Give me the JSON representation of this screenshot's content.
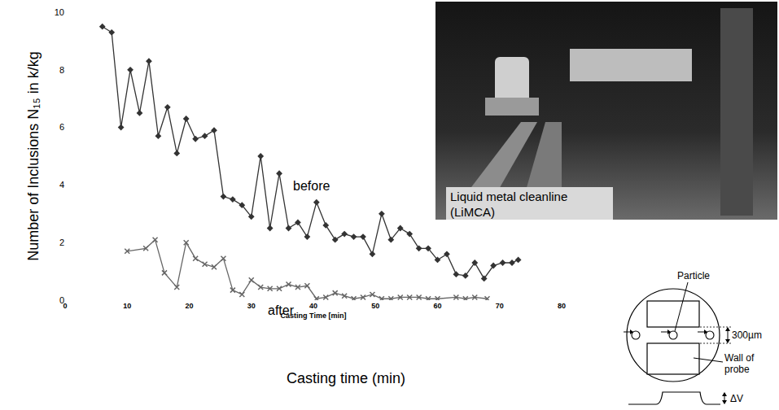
{
  "chart_data": {
    "type": "line",
    "x_title": "Casting Time [min]",
    "y_title": "Number of Inclusions N₁₅ in k/kg",
    "annotations": [
      "Casting time (min)"
    ],
    "xlim": [
      0,
      80
    ],
    "xticks": [
      0,
      10,
      20,
      30,
      40,
      50,
      60,
      70,
      80
    ],
    "ylim": [
      0,
      10
    ],
    "yticks": [
      0,
      2,
      4,
      6,
      8,
      10
    ],
    "grid": false,
    "series": [
      {
        "name": "before",
        "color": "#333333",
        "marker": "diamond",
        "line_style": "solid",
        "x": [
          6,
          7.5,
          9,
          10.5,
          12,
          13.5,
          15,
          16.5,
          18,
          19.5,
          21,
          22.5,
          24,
          25.5,
          27,
          28.5,
          30,
          31.5,
          33,
          34.5,
          36,
          37.5,
          39,
          40.5,
          42,
          43.5,
          45,
          46.5,
          48,
          49.5,
          51,
          52.5,
          54,
          55.5,
          57,
          58.5,
          60,
          61.5,
          63,
          64.5,
          66,
          67.5,
          69,
          70.5,
          72,
          73
        ],
        "values": [
          9.5,
          9.3,
          6.0,
          8.0,
          6.5,
          8.3,
          5.7,
          6.7,
          5.1,
          6.3,
          5.6,
          5.7,
          5.9,
          3.6,
          3.5,
          3.3,
          2.9,
          5.0,
          2.5,
          4.4,
          2.5,
          2.7,
          2.2,
          3.4,
          2.6,
          2.1,
          2.3,
          2.2,
          2.2,
          1.6,
          3.0,
          2.1,
          2.5,
          2.3,
          1.8,
          1.8,
          1.4,
          1.6,
          0.9,
          0.85,
          1.3,
          0.75,
          1.2,
          1.3,
          1.3,
          1.4
        ]
      },
      {
        "name": "after",
        "color": "#666666",
        "marker": "x",
        "line_style": "solid",
        "x": [
          10,
          13,
          14.5,
          16,
          18,
          19.5,
          21,
          22.5,
          24,
          25.5,
          27,
          28.5,
          30,
          31.5,
          33,
          34.5,
          36,
          37.5,
          39,
          40.5,
          42,
          43.5,
          45,
          46.5,
          48,
          49.5,
          51,
          52.5,
          54,
          55.5,
          57,
          58.5,
          60,
          63,
          64.5,
          66,
          68
        ],
        "values": [
          1.7,
          1.8,
          2.1,
          0.95,
          0.45,
          2.0,
          1.45,
          1.25,
          1.15,
          1.45,
          0.35,
          0.2,
          0.7,
          0.45,
          0.4,
          0.4,
          0.55,
          0.45,
          0.5,
          0.05,
          0.1,
          0.25,
          0.15,
          0.05,
          0.1,
          0.2,
          0.05,
          0.05,
          0.1,
          0.1,
          0.1,
          0.05,
          0.05,
          0.1,
          0.05,
          0.1,
          0.05
        ]
      }
    ]
  },
  "photo": {
    "caption": "Liquid metal cleanline (LiMCA)"
  },
  "diagram": {
    "particle": "Particle",
    "gap": "300µm",
    "wall": "Wall of probe",
    "signal": "ΔV"
  }
}
